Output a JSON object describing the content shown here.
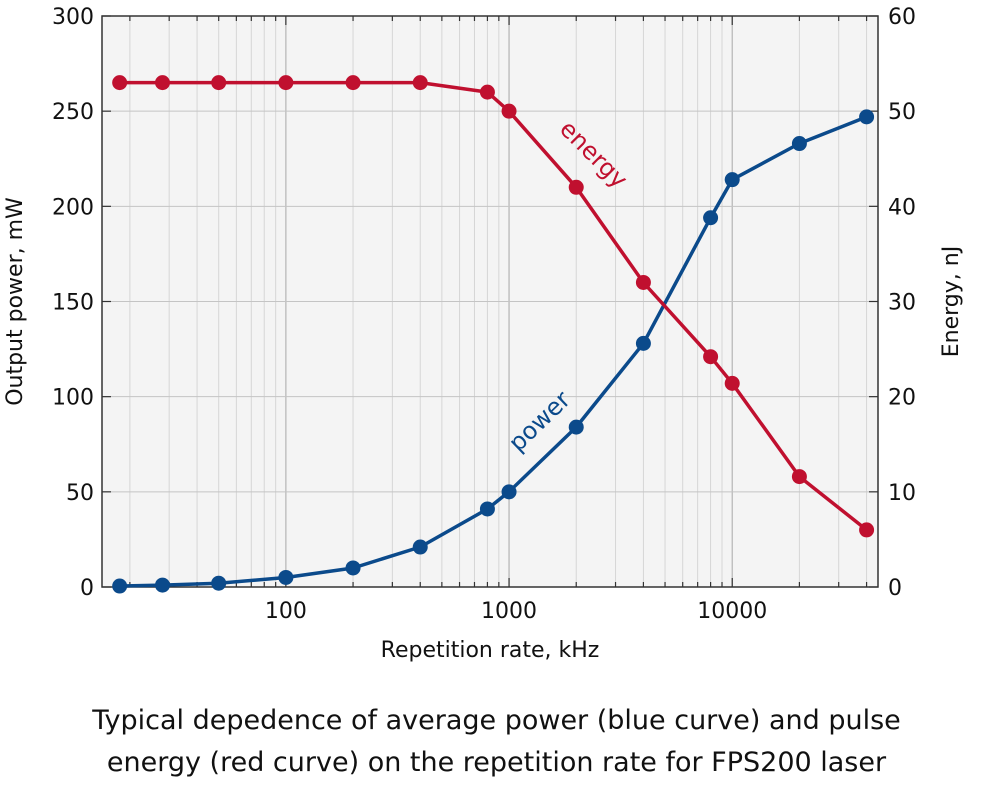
{
  "chart_data": {
    "type": "line",
    "xscale": "log",
    "xlabel": "Repetition rate, kHz",
    "ylabel": "Output power, mW",
    "y2label": "Energy, nJ",
    "xlim": [
      15,
      45000
    ],
    "ylim": [
      0,
      300
    ],
    "y2lim": [
      0,
      60
    ],
    "x_ticks": [
      100,
      1000,
      10000
    ],
    "y_ticks": [
      0,
      50,
      100,
      150,
      200,
      250,
      300
    ],
    "y2_ticks": [
      0,
      10,
      20,
      30,
      40,
      50,
      60
    ],
    "grid": true,
    "series": [
      {
        "name": "power",
        "axis": "left",
        "color": "#0b4a8b",
        "x": [
          18,
          28,
          50,
          100,
          200,
          400,
          800,
          1000,
          2000,
          4000,
          8000,
          10000,
          20000,
          40000
        ],
        "y": [
          0.5,
          1,
          2,
          5,
          10,
          21,
          41,
          50,
          84,
          128,
          194,
          214,
          233,
          247
        ]
      },
      {
        "name": "energy",
        "axis": "right",
        "color": "#c0102f",
        "x": [
          18,
          28,
          50,
          100,
          200,
          400,
          800,
          1000,
          2000,
          4000,
          8000,
          10000,
          20000,
          40000
        ],
        "y": [
          53,
          53,
          53,
          53,
          53,
          53,
          52,
          50,
          42,
          32,
          24.2,
          21.4,
          11.6,
          6
        ]
      }
    ]
  },
  "caption": {
    "line1": "Typical depedence of average power (blue curve) and pulse",
    "line2": "energy (red curve) on the repetition rate for FPS200 laser"
  }
}
